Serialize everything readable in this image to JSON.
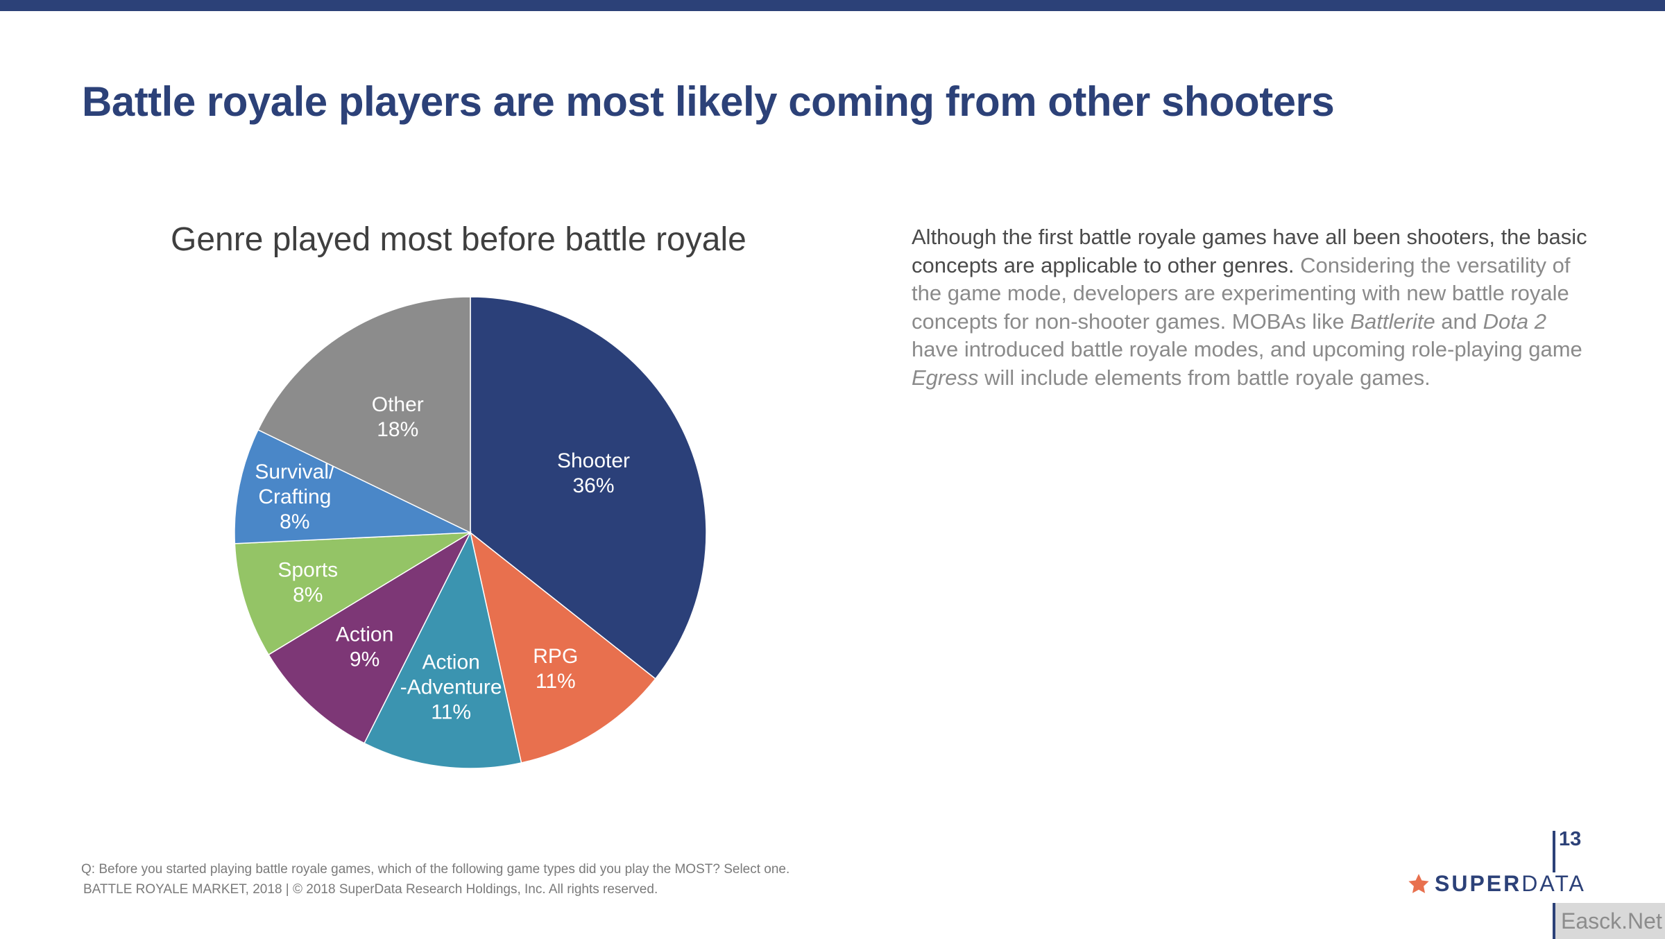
{
  "page": {
    "title": "Battle royale players are most likely coming from other shooters",
    "page_number": "13",
    "accent_color": "#2C4178"
  },
  "chart_data": {
    "type": "pie",
    "title": "Genre played most before battle royale",
    "start_angle": "top",
    "direction": "clockwise",
    "unit": "%",
    "slices": [
      {
        "label": "Shooter",
        "label_lines": [
          "Shooter",
          "36%"
        ],
        "value": 36,
        "color": "#2B4079"
      },
      {
        "label": "RPG",
        "label_lines": [
          "RPG",
          "11%"
        ],
        "value": 11,
        "color": "#E8704E"
      },
      {
        "label": "Action-Adventure",
        "label_lines": [
          "Action",
          "-Adventure",
          "11%"
        ],
        "value": 11,
        "color": "#3B94B0"
      },
      {
        "label": "Action",
        "label_lines": [
          "Action",
          "9%"
        ],
        "value": 9,
        "color": "#7D3776"
      },
      {
        "label": "Sports",
        "label_lines": [
          "Sports",
          "8%"
        ],
        "value": 8,
        "color": "#94C466"
      },
      {
        "label": "Survival/Crafting",
        "label_lines": [
          "Survival/",
          "Crafting",
          "8%"
        ],
        "value": 8,
        "color": "#4A87C8"
      },
      {
        "label": "Other",
        "label_lines": [
          "Other",
          "18%"
        ],
        "value": 18,
        "color": "#8C8C8C"
      }
    ]
  },
  "commentary": {
    "lead": "Although the first battle royale games have all been shooters, the basic concepts are applicable to other genres.",
    "part1": " Considering the versatility of the game mode, developers are experimenting with new battle royale concepts for non-shooter games. MOBAs like ",
    "game1": "Battlerite",
    "part2": " and ",
    "game2": "Dota 2",
    "part3": " have introduced battle royale modes, and upcoming role-playing game ",
    "game3": "Egress",
    "part4": " will include elements from battle royale games."
  },
  "footer": {
    "question": "Q: Before you started playing battle royale games, which of the following game types did you play the MOST? Select one.",
    "copyright": "BATTLE ROYALE MARKET, 2018  |  © 2018 SuperData Research Holdings, Inc. All rights reserved."
  },
  "logo": {
    "icon": "star-icon",
    "brand_bold": "SUPER",
    "brand_light": "DATA",
    "star_color": "#E8704E"
  },
  "watermark": {
    "text": "Easck.Net"
  }
}
